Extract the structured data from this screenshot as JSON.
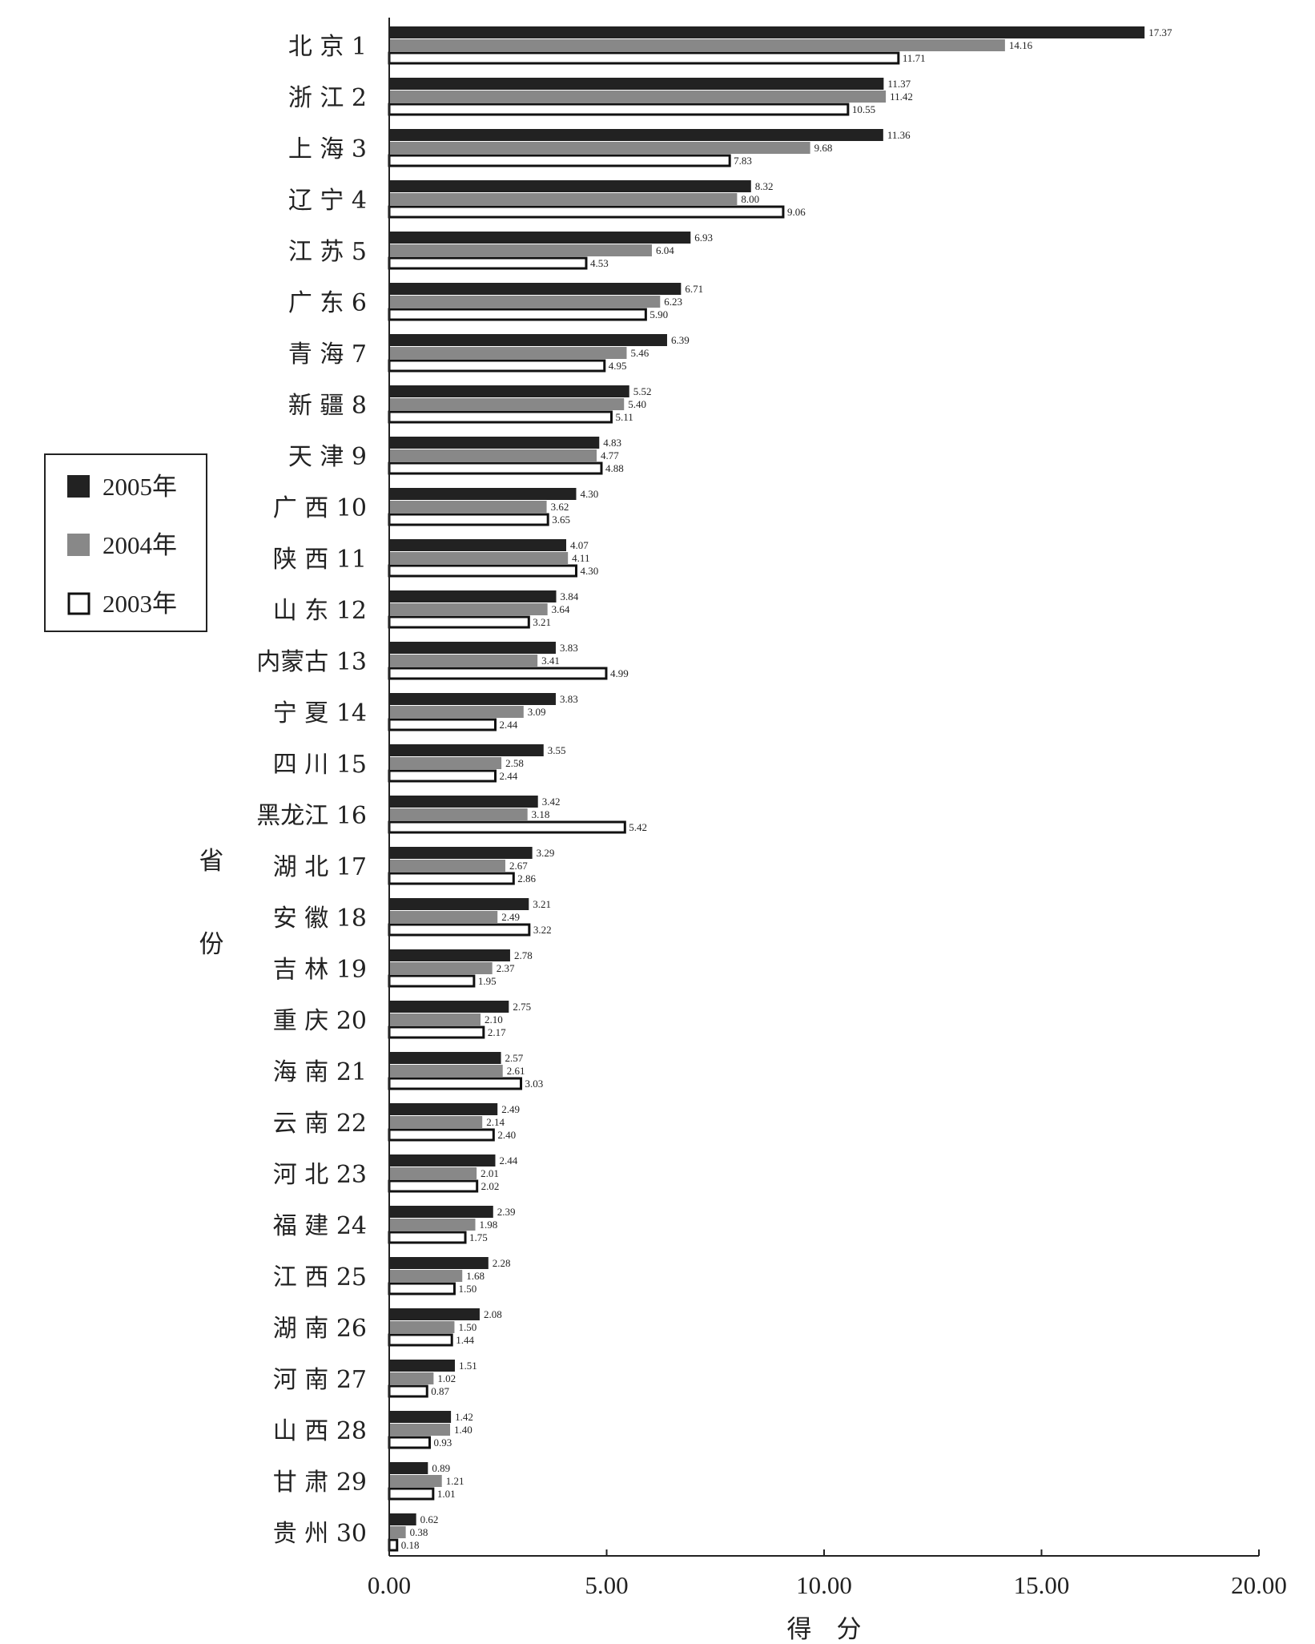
{
  "chart_data": {
    "type": "bar",
    "orientation": "horizontal",
    "xlabel": "得　分",
    "ylabel": "省份",
    "xlim": [
      0,
      20
    ],
    "x_ticks": [
      "0.00",
      "5.00",
      "10.00",
      "15.00",
      "20.00"
    ],
    "legend_position": "left",
    "categories": [
      "北 京 1",
      "浙 江 2",
      "上 海 3",
      "辽 宁 4",
      "江 苏 5",
      "广 东 6",
      "青 海 7",
      "新 疆 8",
      "天 津 9",
      "广 西 10",
      "陕 西 11",
      "山 东 12",
      "内蒙古 13",
      "宁 夏 14",
      "四 川 15",
      "黑龙江 16",
      "湖 北 17",
      "安 徽 18",
      "吉 林 19",
      "重 庆 20",
      "海 南 21",
      "云 南 22",
      "河 北 23",
      "福 建 24",
      "江 西 25",
      "湖 南 26",
      "河 南 27",
      "山 西 28",
      "甘 肃 29",
      "贵 州 30"
    ],
    "series": [
      {
        "name": "2005年",
        "color": "#222222",
        "values": [
          17.37,
          11.37,
          11.36,
          8.32,
          6.93,
          6.71,
          6.39,
          5.52,
          4.83,
          4.3,
          4.07,
          3.84,
          3.83,
          3.83,
          3.55,
          3.42,
          3.29,
          3.21,
          2.78,
          2.75,
          2.57,
          2.49,
          2.44,
          2.39,
          2.28,
          2.08,
          1.51,
          1.42,
          0.89,
          0.62
        ]
      },
      {
        "name": "2004年",
        "color": "#888888",
        "values": [
          14.16,
          11.42,
          9.68,
          8.0,
          6.04,
          6.23,
          5.46,
          5.4,
          4.77,
          3.62,
          4.11,
          3.64,
          3.41,
          3.09,
          2.58,
          3.18,
          2.67,
          2.49,
          2.37,
          2.1,
          2.61,
          2.14,
          2.01,
          1.98,
          1.68,
          1.5,
          1.02,
          1.4,
          1.21,
          0.38
        ]
      },
      {
        "name": "2003年",
        "color": "#ffffff",
        "values": [
          11.71,
          10.55,
          7.83,
          9.06,
          4.53,
          5.9,
          4.95,
          5.11,
          4.88,
          3.65,
          4.3,
          3.21,
          4.99,
          2.44,
          2.44,
          5.42,
          2.86,
          3.22,
          1.95,
          2.17,
          3.03,
          2.4,
          2.02,
          1.75,
          1.5,
          1.44,
          0.87,
          0.93,
          1.01,
          0.18
        ]
      }
    ]
  }
}
